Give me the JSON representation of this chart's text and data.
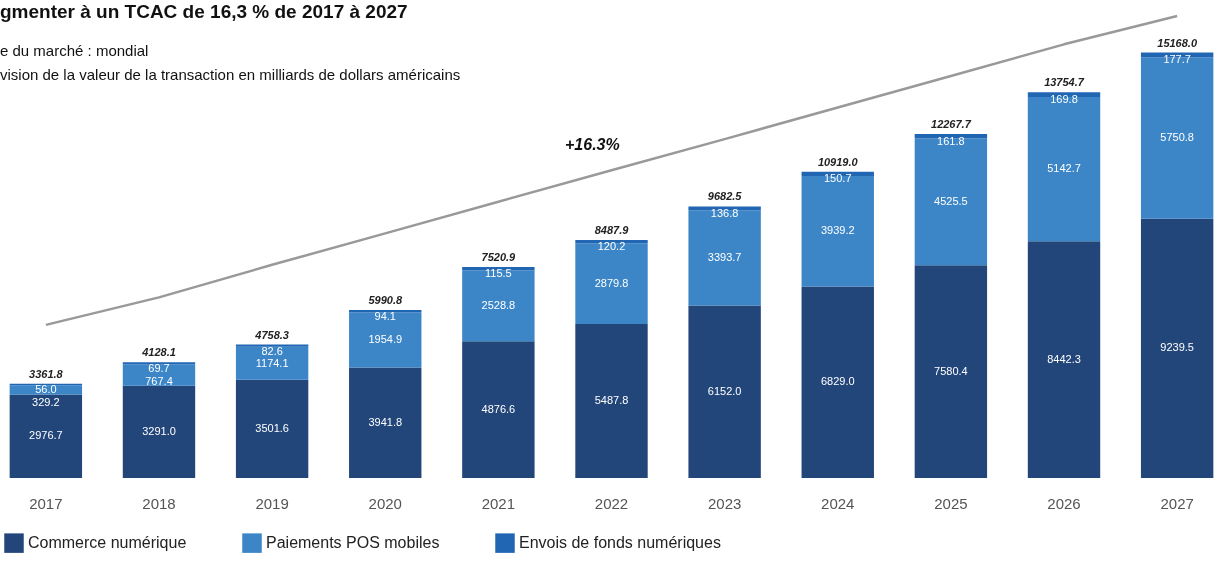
{
  "chart_data": {
    "type": "bar",
    "stacked": true,
    "title": "gmenter à un TCAC de 16,3 % de 2017 à 2027",
    "subtitle": "e du marché : mondial\nvision de la valeur de la transaction en milliards de dollars américains",
    "categories": [
      "2017",
      "2018",
      "2019",
      "2020",
      "2021",
      "2022",
      "2023",
      "2024",
      "2025",
      "2026",
      "2027"
    ],
    "series": [
      {
        "name": "Commerce numérique",
        "color": "#23467a",
        "values": [
          2976.7,
          3291.0,
          3501.6,
          3941.8,
          4876.6,
          5487.8,
          6152.0,
          6829.0,
          7580.4,
          8442.3,
          9239.5
        ],
        "value_labels": [
          "2976.7",
          "3291.0",
          "3501.6",
          "3941.8",
          "4876.6",
          "5487.8",
          "6152.0",
          "6829.0",
          "7580.4",
          "8442.3",
          "9239.5"
        ]
      },
      {
        "name": "Paiements POS mobiles",
        "color": "#3c86c8",
        "values": [
          329.2,
          767.4,
          1174.1,
          1954.9,
          2528.8,
          2879.8,
          3393.7,
          3939.2,
          4525.5,
          5142.7,
          5750.8
        ],
        "value_labels": [
          "329.2",
          "767.4",
          "1174.1",
          "1954.9",
          "2528.8",
          "2879.8",
          "3393.7",
          "3939.2",
          "4525.5",
          "5142.7",
          "5750.8"
        ]
      },
      {
        "name": "Envois de fonds numériques",
        "color": "#2166b3",
        "values": [
          56.0,
          69.7,
          82.6,
          94.1,
          115.5,
          120.2,
          136.8,
          150.7,
          161.8,
          169.8,
          177.7
        ],
        "value_labels": [
          "56.0",
          "69.7",
          "82.6",
          "94.1",
          "115.5",
          "120.2",
          "136.8",
          "150.7",
          "161.8",
          "169.8",
          "177.7"
        ]
      },
      {
        "type": "line",
        "color": "#999999",
        "values": [
          5460,
          6440,
          7600,
          8720,
          9850,
          10970,
          12080,
          13210,
          14330,
          15460,
          16470
        ]
      }
    ],
    "totals": [
      "3361.8",
      "4128.1",
      "4758.3",
      "5990.8",
      "7520.9",
      "8487.9",
      "9682.5",
      "10919.0",
      "12267.7",
      "13754.7",
      "15168.0"
    ],
    "annotations": [
      "+16.3%"
    ],
    "legend": "bottom"
  }
}
